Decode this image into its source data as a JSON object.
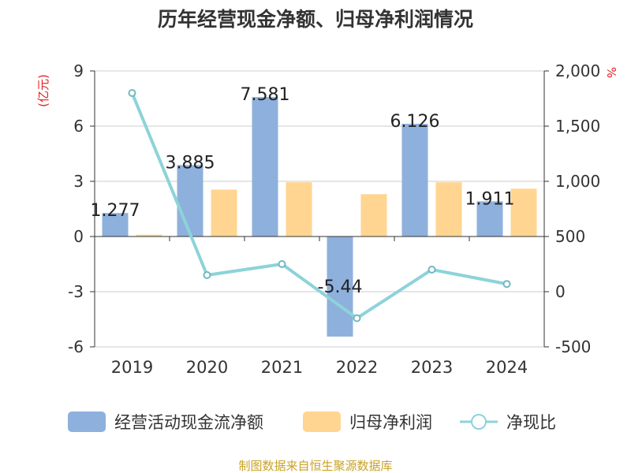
{
  "chart_data": {
    "type": "bar",
    "title": "历年经营现金净额、归母净利润情况",
    "categories": [
      "2019",
      "2020",
      "2021",
      "2022",
      "2023",
      "2024"
    ],
    "y_left": {
      "unit": "(亿元)",
      "min": -6,
      "max": 9,
      "ticks": [
        "9",
        "6",
        "3",
        "0",
        "-3",
        "-6"
      ]
    },
    "y_right": {
      "unit": "%",
      "min": -500,
      "max": 2000,
      "ticks": [
        "2,000",
        "1,500",
        "1,000",
        "500",
        "0",
        "-500"
      ]
    },
    "series": [
      {
        "name": "经营活动现金流净额",
        "type": "bar",
        "axis": "left",
        "color": "#8eb0dc",
        "values": [
          1.277,
          3.885,
          7.581,
          -5.44,
          6.126,
          1.911
        ],
        "labels": [
          "1.277",
          "3.885",
          "7.581",
          "-5.44",
          "6.126",
          "1.911"
        ]
      },
      {
        "name": "归母净利润",
        "type": "bar",
        "axis": "left",
        "color": "#ffd591",
        "values": [
          0.1,
          2.55,
          2.95,
          2.3,
          2.95,
          2.6
        ]
      },
      {
        "name": "净现比",
        "type": "line",
        "axis": "right",
        "color": "#8dd3d9",
        "values": [
          1800,
          150,
          250,
          -240,
          200,
          70
        ]
      }
    ],
    "grid": true,
    "legend_position": "bottom"
  },
  "footer": {
    "source": "制图数据来自恒生聚源数据库"
  }
}
